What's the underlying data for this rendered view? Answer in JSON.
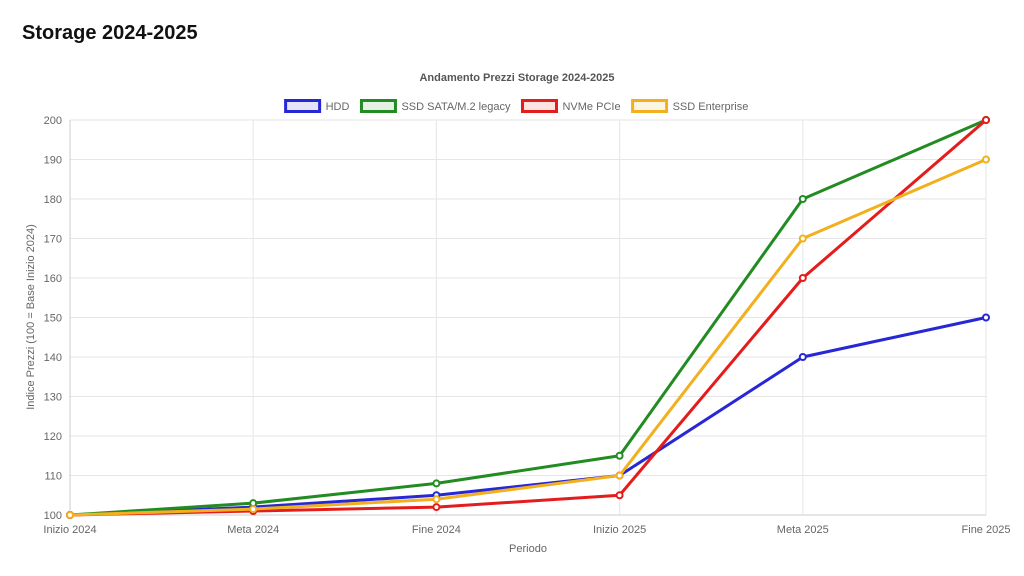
{
  "page": {
    "title": "Storage 2024-2025"
  },
  "chart_data": {
    "type": "line",
    "title": "Andamento Prezzi Storage 2024-2025",
    "xlabel": "Periodo",
    "ylabel": "Indice Prezzi (100 = Base Inizio 2024)",
    "categories": [
      "Inizio 2024",
      "Meta 2024",
      "Fine 2024",
      "Inizio 2025",
      "Meta 2025",
      "Fine 2025"
    ],
    "ylim": [
      100,
      200
    ],
    "yticks": [
      "100",
      "110",
      "120",
      "130",
      "140",
      "150",
      "160",
      "170",
      "180",
      "190",
      "200"
    ],
    "grid": true,
    "legend_position": "top",
    "series": [
      {
        "name": "HDD",
        "color": "#2727d6",
        "values": [
          100,
          102,
          105,
          110,
          140,
          150
        ]
      },
      {
        "name": "SSD SATA/M.2 legacy",
        "color": "#228b22",
        "values": [
          100,
          103,
          108,
          115,
          180,
          200
        ]
      },
      {
        "name": "NVMe PCIe",
        "color": "#e51c1c",
        "values": [
          100,
          101,
          102,
          105,
          160,
          200
        ]
      },
      {
        "name": "SSD Enterprise",
        "color": "#f2b01e",
        "values": [
          100,
          101.5,
          104,
          110,
          170,
          190
        ]
      }
    ]
  }
}
